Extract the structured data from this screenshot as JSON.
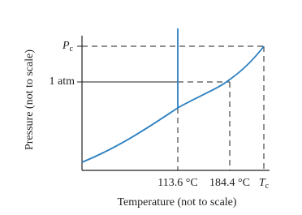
{
  "axes": {
    "x_label": "Temperature (not to scale)",
    "y_label": "Pressure (not to scale)"
  },
  "y_markers": [
    {
      "symbol": "P",
      "subscript": "c"
    },
    {
      "text": "1 atm"
    }
  ],
  "x_markers": [
    {
      "text": "113.6 °C"
    },
    {
      "text": "184.4 °C"
    },
    {
      "symbol": "T",
      "subscript": "c"
    }
  ]
}
